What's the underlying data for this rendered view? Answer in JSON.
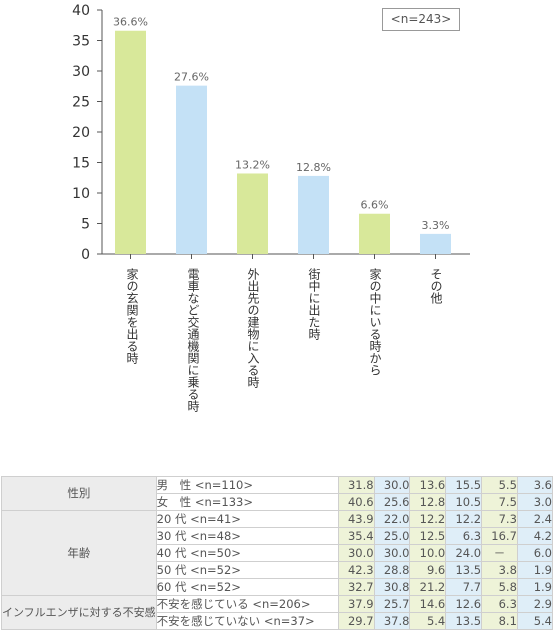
{
  "chart_data": {
    "type": "bar",
    "categories": [
      "家の玄関を出る時",
      "電車など交通機関に乗る時",
      "外出先の建物に入る時",
      "街中に出た時",
      "家の中にいる時から",
      "その他"
    ],
    "values": [
      36.6,
      27.6,
      13.2,
      12.8,
      6.6,
      3.3
    ],
    "data_labels": [
      "36.6%",
      "27.6%",
      "13.2%",
      "12.8%",
      "6.6%",
      "3.3%"
    ],
    "ylim": [
      0,
      40
    ],
    "yticks": [
      "0",
      "5",
      "10",
      "15",
      "20",
      "25",
      "30",
      "35",
      "40"
    ],
    "ytick_values": [
      0,
      5,
      10,
      15,
      20,
      25,
      30,
      35,
      40
    ],
    "sample_note": "<n=243>",
    "bar_colors": [
      "#d8e89a",
      "#c4e1f6",
      "#d8e89a",
      "#c4e1f6",
      "#d8e89a",
      "#c4e1f6"
    ],
    "grid": false,
    "legend": "none"
  },
  "table": {
    "groups": [
      {
        "label": "性別",
        "rows": [
          {
            "label": "男　性 <n=110>",
            "values": [
              "31.8",
              "30.0",
              "13.6",
              "15.5",
              "5.5",
              "3.6"
            ]
          },
          {
            "label": "女　性 <n=133>",
            "values": [
              "40.6",
              "25.6",
              "12.8",
              "10.5",
              "7.5",
              "3.0"
            ]
          }
        ]
      },
      {
        "label": "年齢",
        "rows": [
          {
            "label": "20 代 <n=41>",
            "values": [
              "43.9",
              "22.0",
              "12.2",
              "12.2",
              "7.3",
              "2.4"
            ]
          },
          {
            "label": "30 代 <n=48>",
            "values": [
              "35.4",
              "25.0",
              "12.5",
              "6.3",
              "16.7",
              "4.2"
            ]
          },
          {
            "label": "40 代 <n=50>",
            "values": [
              "30.0",
              "30.0",
              "10.0",
              "24.0",
              "－",
              "6.0"
            ]
          },
          {
            "label": "50 代 <n=52>",
            "values": [
              "42.3",
              "28.8",
              "9.6",
              "13.5",
              "3.8",
              "1.9"
            ]
          },
          {
            "label": "60 代 <n=52>",
            "values": [
              "32.7",
              "30.8",
              "21.2",
              "7.7",
              "5.8",
              "1.9"
            ]
          }
        ]
      },
      {
        "label": "インフルエンザに対する不安感",
        "rows": [
          {
            "label": "不安を感じている <n=206>",
            "values": [
              "37.9",
              "25.7",
              "14.6",
              "12.6",
              "6.3",
              "2.9"
            ]
          },
          {
            "label": "不安を感じていない <n=37>",
            "values": [
              "29.7",
              "37.8",
              "5.4",
              "13.5",
              "8.1",
              "5.4"
            ]
          }
        ]
      }
    ]
  }
}
